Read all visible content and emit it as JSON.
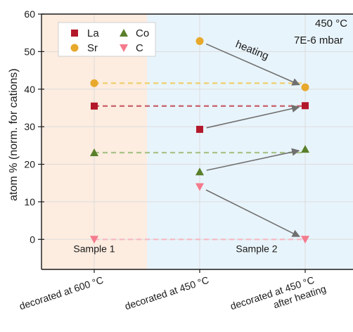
{
  "chart_data": {
    "type": "scatter",
    "ylabel": "atom % (norm. for cations)",
    "xlabel": "",
    "ylim": [
      -8,
      60
    ],
    "yticks": [
      0,
      10,
      20,
      30,
      40,
      50,
      60
    ],
    "categories": [
      {
        "label": "decorated at 600 °C",
        "sub": ""
      },
      {
        "label": "decorated at 450 °C",
        "sub": ""
      },
      {
        "label": "decorated at 450 °C",
        "sub": "after heating"
      }
    ],
    "regions": [
      {
        "label": "Sample 1",
        "color": "#fdece0",
        "from": -0.5,
        "to": 0.5
      },
      {
        "label": "Sample 2",
        "color": "#e8f4fb",
        "from": 0.5,
        "to": 2.5
      }
    ],
    "series": [
      {
        "name": "La",
        "marker": "square",
        "color": "#b3182a",
        "values": [
          35.5,
          29.3,
          35.6
        ]
      },
      {
        "name": "Sr",
        "marker": "circle",
        "color": "#e8a82b",
        "values": [
          41.6,
          52.8,
          40.5
        ]
      },
      {
        "name": "Co",
        "marker": "triangle-up",
        "color": "#5a7f2a",
        "values": [
          23.1,
          18.0,
          24.0
        ]
      },
      {
        "name": "C",
        "marker": "triangle-down",
        "color": "#f47b8c",
        "values": [
          0,
          14.0,
          0
        ]
      }
    ],
    "reference_lines": [
      {
        "series": "Sr",
        "color": "#f0cf6e",
        "y": 41.6
      },
      {
        "series": "La",
        "color": "#c8606a",
        "y": 35.5
      },
      {
        "series": "Co",
        "color": "#a8c388",
        "y": 23.1
      },
      {
        "series": "C",
        "color": "#f5b8c4",
        "y": 0
      }
    ],
    "arrows": [
      {
        "from": [
          1,
          52.8
        ],
        "to": [
          2,
          40.5
        ]
      },
      {
        "from": [
          1,
          29.3
        ],
        "to": [
          2,
          35.6
        ]
      },
      {
        "from": [
          1,
          18.0
        ],
        "to": [
          2,
          24.0
        ]
      },
      {
        "from": [
          1,
          14.0
        ],
        "to": [
          2,
          0
        ]
      }
    ],
    "annotations": {
      "heating": "heating",
      "condition_line1": "450 °C",
      "condition_line2": "7E-6 mbar"
    },
    "legend_position": "top-left",
    "grid": true
  }
}
